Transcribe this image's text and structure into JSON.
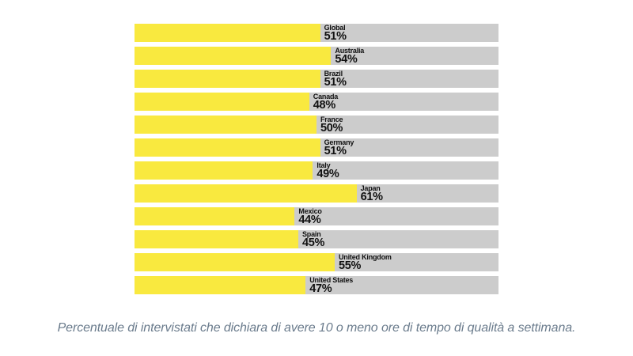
{
  "chart_data": {
    "type": "bar",
    "orientation": "horizontal",
    "title": "",
    "xlabel": "",
    "ylabel": "",
    "xlim": [
      0,
      100
    ],
    "unit": "%",
    "grid": false,
    "legend": "none",
    "categories": [
      "Global",
      "Australia",
      "Brazil",
      "Canada",
      "France",
      "Germany",
      "Italy",
      "Japan",
      "Mexico",
      "Spain",
      "United Kingdom",
      "United States"
    ],
    "values": [
      51,
      54,
      51,
      48,
      50,
      51,
      49,
      61,
      44,
      45,
      55,
      47
    ],
    "labels": [
      "51%",
      "54%",
      "51%",
      "48%",
      "50%",
      "51%",
      "49%",
      "61%",
      "44%",
      "45%",
      "55%",
      "47%"
    ],
    "colors": {
      "bar_fill": "#F9E93F",
      "bar_track": "#CCCCCC",
      "label_text": "#111111"
    }
  },
  "caption": {
    "text": "Percentuale di intervistati che dichiara di avere 10 o meno ore di tempo di qualità a settimana.",
    "color": "#6A7B8C"
  }
}
